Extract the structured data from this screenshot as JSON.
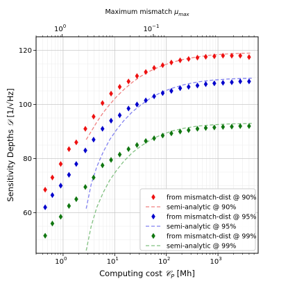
{
  "chart_data": {
    "type": "scatter",
    "xlabel": "Computing cost",
    "xlabel_math": "𝒞",
    "xlabel_math_sub": "P",
    "xlabel_unit": " [Mh]",
    "x_scale": "log",
    "xlim": [
      0.3,
      6000
    ],
    "x_ticks": [
      {
        "value": 1,
        "base": "10",
        "exp": "0"
      },
      {
        "value": 10,
        "base": "10",
        "exp": "1"
      },
      {
        "value": 100,
        "base": "10",
        "exp": "2"
      },
      {
        "value": 1000,
        "base": "10",
        "exp": "3"
      }
    ],
    "ylabel": "Sensitivity Depths",
    "ylabel_math": "𝒟",
    "ylabel_unit": " [1/√Hz]",
    "ylim": [
      45,
      125
    ],
    "y_ticks": [
      "60",
      "80",
      "100",
      "120"
    ],
    "top_xlabel": "Maximum mismatch",
    "top_xlabel_math": "μ",
    "top_xlabel_math_sub": "max",
    "top_x_ticks": [
      {
        "x_value": 0.96,
        "base": "10",
        "exp": "0"
      },
      {
        "x_value": 56,
        "base": "10",
        "exp": "−1"
      }
    ],
    "grid": true,
    "legend_position": "lower-right",
    "series": [
      {
        "name": "from mismatch-dist @ 90%",
        "kind": "markers",
        "marker": "diamond",
        "color": "#ee1111",
        "x": [
          0.45,
          0.62,
          0.9,
          1.3,
          1.8,
          2.7,
          3.9,
          5.8,
          8.5,
          12.5,
          18.5,
          27,
          40,
          58,
          85,
          125,
          185,
          270,
          400,
          580,
          850,
          1250,
          1850,
          2700,
          4000
        ],
        "y": [
          68.5,
          73,
          78,
          83.5,
          86,
          91,
          95.5,
          100.5,
          104,
          106.5,
          108.5,
          110.5,
          112,
          113.5,
          114.5,
          115.5,
          116.3,
          116.8,
          117.3,
          117.6,
          117.8,
          118,
          118,
          118,
          117.5
        ]
      },
      {
        "name": "semi-analytic @ 90%",
        "kind": "line",
        "style": "dashed",
        "color": "#f08080",
        "x": [
          2.8,
          3.5,
          4.5,
          6,
          8,
          11,
          15,
          22,
          32,
          50,
          80,
          130,
          220,
          400,
          800,
          1600,
          3000,
          4500
        ],
        "y": [
          87,
          90,
          93.5,
          97,
          100,
          103,
          105.5,
          108.2,
          110.4,
          112.5,
          114.2,
          115.6,
          116.7,
          117.6,
          118.3,
          118.7,
          118.9,
          119
        ]
      },
      {
        "name": "from mismatch-dist @ 95%",
        "kind": "markers",
        "marker": "diamond",
        "color": "#0000cc",
        "x": [
          0.45,
          0.62,
          0.9,
          1.3,
          1.8,
          2.7,
          3.9,
          5.8,
          8.5,
          12.5,
          18.5,
          27,
          40,
          58,
          85,
          125,
          185,
          270,
          400,
          580,
          850,
          1250,
          1850,
          2700,
          4000
        ],
        "y": [
          62,
          66.5,
          70,
          74,
          78,
          83,
          87,
          91,
          94,
          96,
          98.5,
          100,
          101.5,
          103,
          104.2,
          105,
          106,
          106.5,
          107,
          107.5,
          107.8,
          108,
          108.2,
          108.5,
          108.5
        ]
      },
      {
        "name": "semi-analytic @ 95%",
        "kind": "line",
        "style": "dashed",
        "color": "#8080f0",
        "x": [
          2.8,
          3.5,
          4.5,
          6,
          8,
          11,
          15,
          22,
          32,
          50,
          80,
          130,
          220,
          400,
          800,
          1600,
          3000,
          4500
        ],
        "y": [
          61.5,
          70.5,
          77,
          82.5,
          87,
          90.8,
          94,
          97.3,
          99.8,
          102.4,
          104.5,
          106,
          107.3,
          108.3,
          109,
          109.4,
          109.6,
          109.7
        ]
      },
      {
        "name": "from mismatch-dist @ 99%",
        "kind": "markers",
        "marker": "diamond",
        "color": "#117711",
        "x": [
          0.45,
          0.62,
          0.9,
          1.3,
          1.8,
          2.7,
          3.9,
          5.8,
          8.5,
          12.5,
          18.5,
          27,
          40,
          58,
          85,
          125,
          185,
          270,
          400,
          580,
          850,
          1250,
          1850,
          2700,
          4000
        ],
        "y": [
          51.5,
          56,
          58.5,
          62.5,
          65,
          69.5,
          73,
          77.5,
          79.5,
          81.5,
          83.5,
          85,
          86.5,
          87.5,
          88.5,
          89.3,
          90,
          90.5,
          91,
          91.3,
          91.5,
          91.7,
          91.8,
          92,
          92
        ]
      },
      {
        "name": "semi-analytic @ 99%",
        "kind": "line",
        "style": "dashed",
        "color": "#80c080",
        "x": [
          2.8,
          3.5,
          4.5,
          6,
          8,
          11,
          15,
          22,
          32,
          50,
          80,
          130,
          220,
          400,
          800,
          1600,
          3000,
          4500
        ],
        "y": [
          46,
          55,
          62,
          67.5,
          72,
          75.8,
          79,
          82.2,
          84.6,
          87,
          88.8,
          90.2,
          91.2,
          92,
          92.5,
          92.8,
          92.9,
          93
        ]
      }
    ]
  }
}
